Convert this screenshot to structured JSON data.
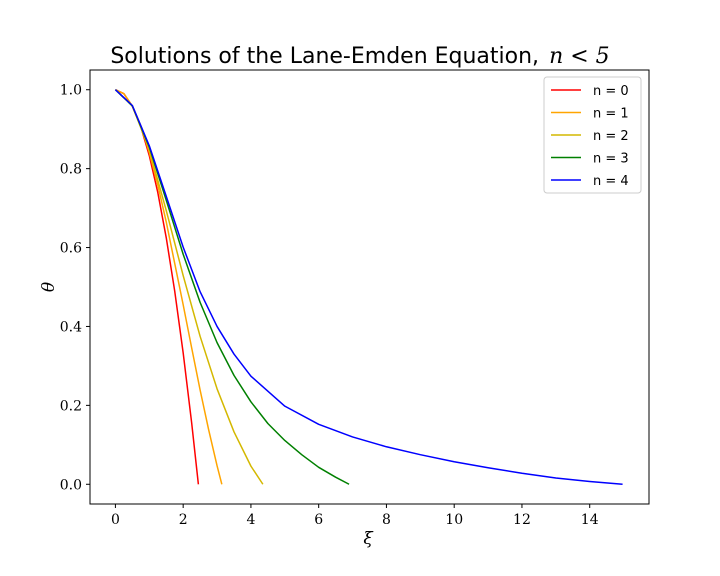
{
  "chart_data": {
    "type": "line",
    "title": "Solutions of the Lane-Emden Equation,",
    "title_math": "n < 5",
    "xlabel": "ξ",
    "ylabel": "θ",
    "xlim": [
      -0.75,
      15.75
    ],
    "ylim": [
      -0.05,
      1.05
    ],
    "xticks": [
      0,
      2,
      4,
      6,
      8,
      10,
      12,
      14
    ],
    "yticks": [
      0.0,
      0.2,
      0.4,
      0.6,
      0.8,
      1.0
    ],
    "xtick_labels": [
      "0",
      "2",
      "4",
      "6",
      "8",
      "10",
      "12",
      "14"
    ],
    "ytick_labels": [
      "0.0",
      "0.2",
      "0.4",
      "0.6",
      "0.8",
      "1.0"
    ],
    "grid": false,
    "legend_position": "top-right",
    "series": [
      {
        "name": "n = 0",
        "color": "#ff0000",
        "x": [
          0,
          0.25,
          0.5,
          0.75,
          1.0,
          1.25,
          1.5,
          1.75,
          2.0,
          2.25,
          2.449
        ],
        "y": [
          1.0,
          0.99,
          0.958,
          0.906,
          0.833,
          0.74,
          0.625,
          0.49,
          0.333,
          0.156,
          0.0
        ]
      },
      {
        "name": "n = 1",
        "color": "#ffa500",
        "x": [
          0,
          0.25,
          0.5,
          0.75,
          1.0,
          1.25,
          1.5,
          1.75,
          2.0,
          2.25,
          2.5,
          2.75,
          3.0,
          3.1416
        ],
        "y": [
          1.0,
          0.99,
          0.959,
          0.909,
          0.841,
          0.759,
          0.665,
          0.56,
          0.455,
          0.346,
          0.239,
          0.139,
          0.047,
          0.0
        ]
      },
      {
        "name": "n = 2",
        "color": "#d4b800",
        "x": [
          0,
          0.5,
          1.0,
          1.5,
          2.0,
          2.5,
          3.0,
          3.5,
          4.0,
          4.3529
        ],
        "y": [
          1.0,
          0.959,
          0.848,
          0.694,
          0.529,
          0.375,
          0.242,
          0.133,
          0.046,
          0.0
        ]
      },
      {
        "name": "n = 3",
        "color": "#008000",
        "x": [
          0,
          0.5,
          1.0,
          1.5,
          2.0,
          2.5,
          3.0,
          3.5,
          4.0,
          4.5,
          5.0,
          5.5,
          6.0,
          6.5,
          6.897
        ],
        "y": [
          1.0,
          0.959,
          0.855,
          0.72,
          0.583,
          0.461,
          0.359,
          0.276,
          0.209,
          0.154,
          0.111,
          0.075,
          0.043,
          0.018,
          0.0
        ]
      },
      {
        "name": "n = 4",
        "color": "#0000ff",
        "x": [
          0,
          0.5,
          1.0,
          1.5,
          2.0,
          2.5,
          3.0,
          3.5,
          4.0,
          5.0,
          6.0,
          7.0,
          8.0,
          9.0,
          10.0,
          11.0,
          12.0,
          13.0,
          14.0,
          14.97
        ],
        "y": [
          1.0,
          0.96,
          0.858,
          0.73,
          0.601,
          0.488,
          0.4,
          0.33,
          0.274,
          0.198,
          0.152,
          0.12,
          0.095,
          0.075,
          0.057,
          0.042,
          0.028,
          0.016,
          0.007,
          0.0
        ]
      }
    ]
  }
}
